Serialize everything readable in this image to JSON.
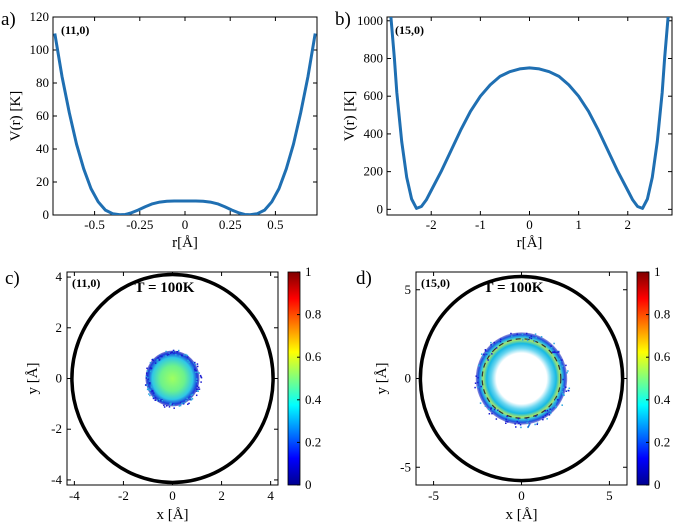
{
  "chart_data": [
    {
      "panel_label": "a)",
      "type": "line",
      "annotation": "(11,0)",
      "ylabel": "V(r) [K]",
      "xlabel": "r[Å]",
      "xlim": [
        -0.73,
        0.73
      ],
      "ylim": [
        0,
        120
      ],
      "xticks": [
        "-0.5",
        "-0.25",
        "0",
        "0.25",
        "0.5"
      ],
      "xtick_values": [
        -0.5,
        -0.25,
        0,
        0.25,
        0.5
      ],
      "yticks": [
        "0",
        "20",
        "40",
        "60",
        "80",
        "100",
        "120"
      ],
      "ytick_values": [
        0,
        20,
        40,
        60,
        80,
        100,
        120
      ],
      "x": [
        -0.72,
        -0.68,
        -0.64,
        -0.6,
        -0.56,
        -0.52,
        -0.48,
        -0.44,
        -0.4,
        -0.36,
        -0.33,
        -0.3,
        -0.26,
        -0.22,
        -0.18,
        -0.14,
        -0.1,
        -0.06,
        0,
        0.06,
        0.1,
        0.14,
        0.18,
        0.22,
        0.26,
        0.3,
        0.33,
        0.36,
        0.4,
        0.44,
        0.48,
        0.52,
        0.56,
        0.6,
        0.64,
        0.68,
        0.72
      ],
      "y": [
        110,
        84,
        62,
        43,
        28,
        16,
        8,
        3,
        0.8,
        0.2,
        0.3,
        1.2,
        3,
        5,
        6.8,
        7.8,
        8.3,
        8.5,
        8.5,
        8.5,
        8.3,
        7.8,
        6.8,
        5,
        3,
        1.2,
        0.3,
        0.2,
        0.8,
        3,
        8,
        16,
        28,
        43,
        62,
        84,
        110
      ],
      "line_color": "#1f6fb2"
    },
    {
      "panel_label": "b)",
      "type": "line",
      "annotation": "(15,0)",
      "ylabel": "V(r) [K]",
      "xlabel": "r[Å]",
      "xlim": [
        -2.9,
        2.9
      ],
      "ylim": [
        -30,
        1020
      ],
      "xticks": [
        "-2",
        "-1",
        "0",
        "1",
        "2"
      ],
      "xtick_values": [
        -2,
        -1,
        0,
        1,
        2
      ],
      "yticks": [
        "0",
        "200",
        "400",
        "600",
        "800",
        "1000"
      ],
      "ytick_values": [
        0,
        200,
        400,
        600,
        800,
        1000
      ],
      "x": [
        -2.82,
        -2.75,
        -2.7,
        -2.6,
        -2.5,
        -2.4,
        -2.3,
        -2.2,
        -2.1,
        -2.0,
        -1.8,
        -1.6,
        -1.4,
        -1.2,
        -1.0,
        -0.8,
        -0.6,
        -0.4,
        -0.2,
        0,
        0.2,
        0.4,
        0.6,
        0.8,
        1.0,
        1.2,
        1.4,
        1.6,
        1.8,
        2.0,
        2.1,
        2.2,
        2.3,
        2.4,
        2.5,
        2.6,
        2.7,
        2.75,
        2.82
      ],
      "y": [
        1020,
        800,
        620,
        360,
        170,
        55,
        5,
        15,
        50,
        100,
        200,
        310,
        420,
        520,
        600,
        660,
        705,
        730,
        745,
        750,
        745,
        730,
        705,
        660,
        600,
        520,
        420,
        310,
        200,
        100,
        50,
        15,
        5,
        55,
        170,
        360,
        620,
        800,
        1020
      ],
      "line_color": "#1f6fb2"
    },
    {
      "panel_label": "c)",
      "type": "heatmap",
      "annotation": "(11,0)",
      "title": "T = 100K",
      "ylabel": "y [Å]",
      "xlabel": "x [Å]",
      "xlim": [
        -4.3,
        4.3
      ],
      "ylim": [
        -4.2,
        4.2
      ],
      "xticks": [
        "-4",
        "-2",
        "0",
        "2",
        "4"
      ],
      "xtick_values": [
        -4,
        -2,
        0,
        2,
        4
      ],
      "yticks": [
        "4",
        "2",
        "0",
        "-2",
        "-4"
      ],
      "ytick_values": [
        4,
        2,
        0,
        -2,
        -4
      ],
      "circle_radius": 4.1,
      "density_radius": 1.1,
      "colorbar_ticks": [
        "1",
        "0.8",
        "0.6",
        "0.4",
        "0.2",
        "0"
      ]
    },
    {
      "panel_label": "d)",
      "type": "heatmap",
      "annotation": "(15,0)",
      "title": "T = 100K",
      "ylabel": "y [Å]",
      "xlabel": "x [Å]",
      "xlim": [
        -6.0,
        6.0
      ],
      "ylim": [
        -6.0,
        6.0
      ],
      "xticks": [
        "-5",
        "0",
        "5"
      ],
      "xtick_values": [
        -5,
        0,
        5
      ],
      "yticks": [
        "5",
        "0",
        "-5"
      ],
      "ytick_values": [
        5,
        0,
        -5
      ],
      "circle_radius": 5.75,
      "density_radius": 2.6,
      "colorbar_ticks": [
        "1",
        "0.8",
        "0.6",
        "0.4",
        "0.2",
        "0"
      ]
    }
  ]
}
